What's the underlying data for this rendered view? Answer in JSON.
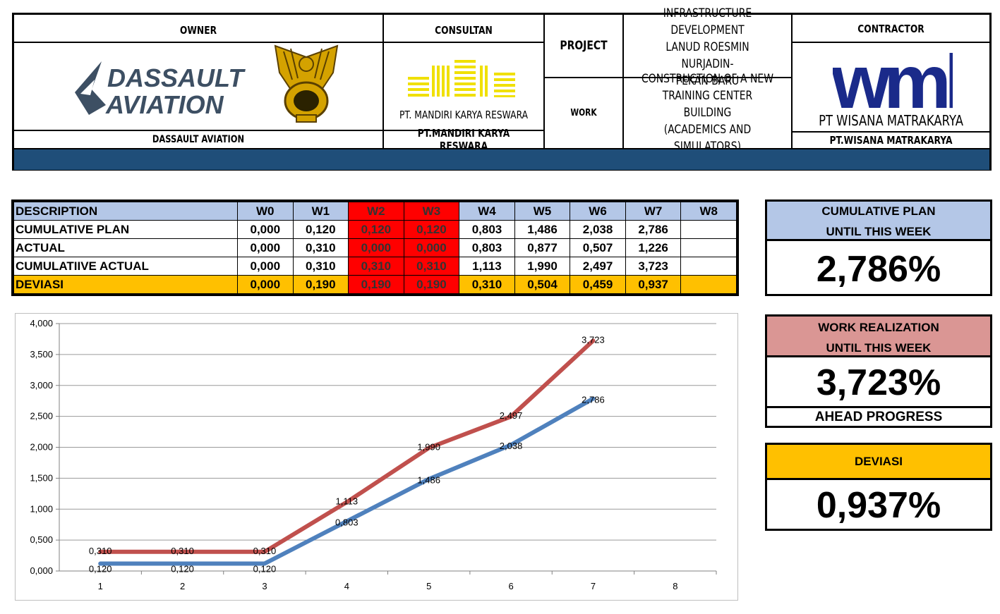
{
  "header": {
    "owner_title": "OWNER",
    "owner_name": "DASSAULT AVIATION",
    "owner_logo_line1": "DASSAULT",
    "owner_logo_line2": "AVIATION",
    "consultant_title": "CONSULTAN",
    "consultant_logo_text": "PT. MANDIRI KARYA RESWARA",
    "consultant_name": "PT.MANDIRI KARYA RESWARA",
    "project_label": "PROJECT",
    "project_line1": "INFRASTRUCTURE DEVELOPMENT",
    "project_line2": "LANUD ROESMIN NURJADIN-",
    "project_line3": "PEKAN BARU",
    "work_label": "WORK",
    "work_line1": "CONSTRUCTION OF A NEW",
    "work_line2": "TRAINING CENTER BUILDING",
    "work_line3": "(ACADEMICS AND SIMULATORS)",
    "contractor_title": "CONTRACTOR",
    "contractor_logo_mark": "wmk",
    "contractor_logo_text": "PT WISANA MATRAKARYA",
    "contractor_name": "PT.WISANA MATRAKARYA",
    "colors": {
      "band": "#1f4e79",
      "wmk_blue": "#1a2a8a",
      "consultant_yellow": "#f0e000",
      "emblem_gold": "#c9a000"
    }
  },
  "table": {
    "headers": [
      "DESCRIPTION",
      "W0",
      "W1",
      "W2",
      "W3",
      "W4",
      "W5",
      "W6",
      "W7",
      "W8"
    ],
    "rows": [
      {
        "label": "CUMULATIVE PLAN",
        "values": [
          "0,000",
          "0,120",
          "0,120",
          "0,120",
          "0,803",
          "1,486",
          "2,038",
          "2,786",
          ""
        ]
      },
      {
        "label": "ACTUAL",
        "values": [
          "0,000",
          "0,310",
          "0,000",
          "0,000",
          "0,803",
          "0,877",
          "0,507",
          "1,226",
          ""
        ]
      },
      {
        "label": "CUMULATIIVE ACTUAL",
        "values": [
          "0,000",
          "0,310",
          "0,310",
          "0,310",
          "1,113",
          "1,990",
          "2,497",
          "3,723",
          ""
        ]
      },
      {
        "label": "DEVIASI",
        "values": [
          "0,000",
          "0,190",
          "0,190",
          "0,190",
          "0,310",
          "0,504",
          "0,459",
          "0,937",
          ""
        ]
      }
    ],
    "colors": {
      "header": "#b4c7e7",
      "highlight": "#ff0000",
      "deviasi": "#ffc000"
    }
  },
  "summary": {
    "plan_label1": "CUMULATIVE PLAN",
    "plan_label2": "UNTIL THIS WEEK",
    "plan_value": "2,786%",
    "real_label1": "WORK REALIZATION",
    "real_label2": "UNTIL THIS WEEK",
    "real_value": "3,723%",
    "real_status": "AHEAD PROGRESS",
    "dev_label": "DEVIASI",
    "dev_value": "0,937%",
    "colors": {
      "plan": "#b4c7e7",
      "real": "#da9694",
      "dev": "#ffc000"
    }
  },
  "chart_data": {
    "type": "line",
    "x": [
      1,
      2,
      3,
      4,
      5,
      6,
      7,
      8
    ],
    "xticks": [
      "1",
      "2",
      "3",
      "4",
      "5",
      "6",
      "7",
      "8"
    ],
    "ylim": [
      0,
      4
    ],
    "yticks": [
      "0,000",
      "0,500",
      "1,000",
      "1,500",
      "2,000",
      "2,500",
      "3,000",
      "3,500",
      "4,000"
    ],
    "grid": true,
    "legend": "none",
    "series": [
      {
        "color": "#c0504d",
        "x": [
          1,
          2,
          3,
          4,
          5,
          6,
          7
        ],
        "values": [
          0.31,
          0.31,
          0.31,
          1.113,
          1.99,
          2.497,
          3.723
        ],
        "labels": [
          "0,310",
          "0,310",
          "0,310",
          "1,113",
          "1,990",
          "2,497",
          "3,723"
        ]
      },
      {
        "color": "#4f81bd",
        "x": [
          1,
          2,
          3,
          4,
          5,
          6,
          7
        ],
        "values": [
          0.12,
          0.12,
          0.12,
          0.803,
          1.486,
          2.038,
          2.786
        ],
        "labels": [
          "0,120",
          "0,120",
          "0,120",
          "0,803",
          "1,486",
          "2,038",
          "2,786"
        ]
      }
    ]
  }
}
